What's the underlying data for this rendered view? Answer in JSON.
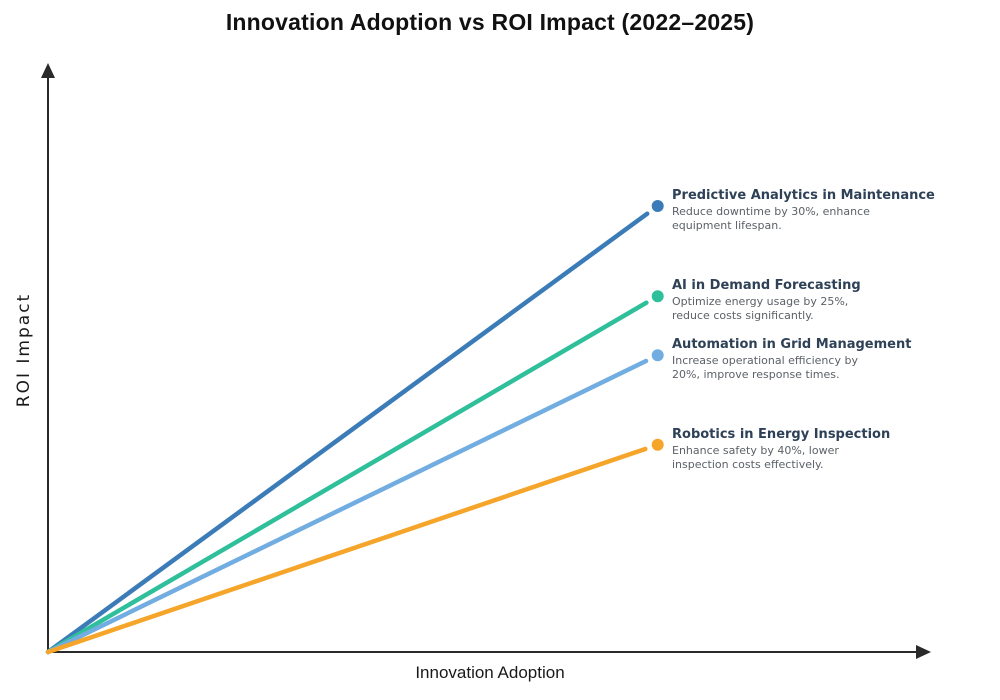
{
  "title": "Innovation Adoption vs ROI Impact (2022–2025)",
  "x_axis": {
    "label": "Innovation Adoption"
  },
  "y_axis": {
    "label": "ROI Impact"
  },
  "chart_data": {
    "type": "line",
    "title": "Innovation Adoption vs ROI Impact (2022–2025)",
    "xlabel": "Innovation Adoption",
    "ylabel": "ROI Impact",
    "axes_unlabeled": true,
    "ticks": "none",
    "gridlines": false,
    "legend": "none (inline endpoint annotations)",
    "axis_style": "arrowheads, origin at bottom-left",
    "x_range_normalized": [
      0,
      1
    ],
    "y_range_normalized": [
      0,
      1
    ],
    "series": [
      {
        "name": "Predictive Analytics in Maintenance",
        "description": "Reduce downtime by 30%, enhance equipment lifespan.",
        "desc_lines": [
          "Reduce downtime by 30%, enhance",
          "equipment lifespan."
        ],
        "color": "#3b7cb8",
        "points": [
          [
            0,
            0
          ],
          [
            0.685,
            0.747
          ]
        ],
        "end": {
          "adoption": 0.685,
          "roi": 0.747
        }
      },
      {
        "name": "AI in Demand Forecasting",
        "description": "Optimize energy usage by 25%, reduce costs significantly.",
        "desc_lines": [
          "Optimize energy usage by 25%,",
          "reduce costs significantly."
        ],
        "color": "#30bf9b",
        "points": [
          [
            0,
            0
          ],
          [
            0.685,
            0.596
          ]
        ],
        "end": {
          "adoption": 0.685,
          "roi": 0.596
        }
      },
      {
        "name": "Automation in Grid Management",
        "description": "Increase operational efficiency by 20%, improve response times.",
        "desc_lines": [
          "Increase operational efficiency by",
          "20%, improve response times."
        ],
        "color": "#71ade0",
        "points": [
          [
            0,
            0
          ],
          [
            0.685,
            0.497
          ]
        ],
        "end": {
          "adoption": 0.685,
          "roi": 0.497
        }
      },
      {
        "name": "Robotics in Energy Inspection",
        "description": "Enhance safety by 40%, lower inspection costs effectively.",
        "desc_lines": [
          "Enhance safety by 40%, lower",
          "inspection costs effectively."
        ],
        "color": "#f6a52b",
        "points": [
          [
            0,
            0
          ],
          [
            0.685,
            0.347
          ]
        ],
        "end": {
          "adoption": 0.685,
          "roi": 0.347
        }
      }
    ],
    "colors": {
      "axis": "#2a2a2a",
      "title_text": "#111111",
      "annotation_title": "#2e4156",
      "annotation_desc": "#5c6167"
    }
  }
}
